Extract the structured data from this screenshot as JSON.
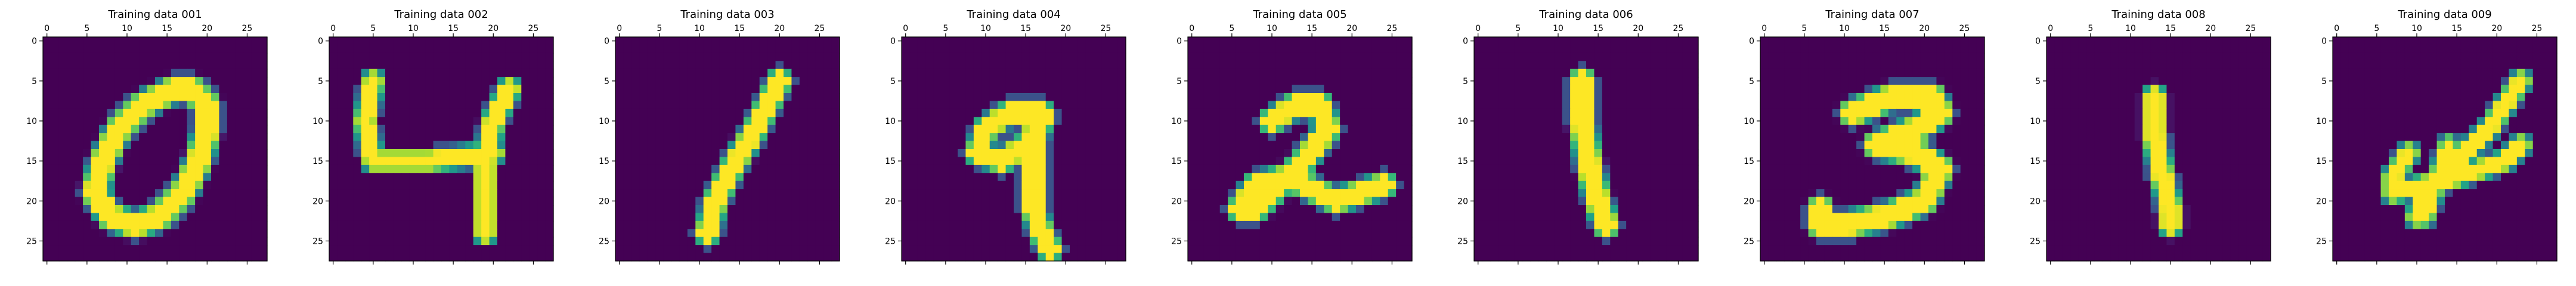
{
  "chart_data": {
    "type": "heatmap",
    "colormap": "viridis",
    "xlim": [
      0,
      27
    ],
    "ylim": [
      27,
      0
    ],
    "xticks": [
      0,
      5,
      10,
      15,
      20,
      25
    ],
    "yticks": [
      0,
      5,
      10,
      15,
      20,
      25
    ],
    "grid": false,
    "panels": [
      {
        "title": "Training data 001",
        "strokes": [
          {
            "points": [
              [
                16,
                6
              ],
              [
                12,
                8
              ],
              [
                9,
                11
              ],
              [
                7,
                15
              ],
              [
                6,
                19
              ],
              [
                8,
                22
              ],
              [
                11,
                23
              ],
              [
                14,
                22
              ],
              [
                17,
                19
              ],
              [
                19,
                15
              ],
              [
                20,
                11
              ],
              [
                20,
                8
              ],
              [
                18,
                6
              ],
              [
                16,
                6
              ]
            ],
            "width": 2.3
          }
        ]
      },
      {
        "title": "Training data 002",
        "strokes": [
          {
            "points": [
              [
                5,
                5
              ],
              [
                4,
                10
              ],
              [
                5,
                15
              ],
              [
                12,
                15
              ],
              [
                20,
                14
              ]
            ],
            "width": 1.7
          },
          {
            "points": [
              [
                22,
                6
              ],
              [
                20,
                10
              ],
              [
                19,
                15
              ],
              [
                19,
                20
              ],
              [
                19,
                24
              ]
            ],
            "width": 1.8
          }
        ]
      },
      {
        "title": "Training data 003",
        "strokes": [
          {
            "points": [
              [
                20,
                5
              ],
              [
                17,
                11
              ],
              [
                14,
                16
              ],
              [
                12,
                20
              ],
              [
                11,
                24
              ]
            ],
            "width": 2.0
          }
        ]
      },
      {
        "title": "Training data 004",
        "strokes": [
          {
            "points": [
              [
                17,
                9
              ],
              [
                13,
                9
              ],
              [
                10,
                11
              ],
              [
                9,
                14
              ],
              [
                12,
                15
              ],
              [
                15,
                13
              ],
              [
                17,
                10
              ]
            ],
            "width": 2.0
          },
          {
            "points": [
              [
                17,
                9
              ],
              [
                16,
                13
              ],
              [
                16,
                17
              ],
              [
                16,
                21
              ],
              [
                17,
                24
              ],
              [
                18,
                26
              ]
            ],
            "width": 2.0
          }
        ]
      },
      {
        "title": "Training data 005",
        "strokes": [
          {
            "points": [
              [
                10,
                10
              ],
              [
                13,
                8
              ],
              [
                16,
                8
              ],
              [
                17,
                11
              ],
              [
                14,
                15
              ],
              [
                11,
                18
              ],
              [
                8,
                21
              ],
              [
                6,
                21
              ],
              [
                8,
                18
              ],
              [
                12,
                17
              ],
              [
                16,
                19
              ],
              [
                18,
                20
              ],
              [
                21,
                19
              ],
              [
                24,
                18
              ]
            ],
            "width": 2.1
          }
        ]
      },
      {
        "title": "Training data 006",
        "strokes": [
          {
            "points": [
              [
                13,
                5
              ],
              [
                13,
                10
              ],
              [
                14,
                16
              ],
              [
                15,
                20
              ],
              [
                16,
                23
              ]
            ],
            "width": 2.2
          }
        ]
      },
      {
        "title": "Training data 007",
        "strokes": [
          {
            "points": [
              [
                11,
                9
              ],
              [
                16,
                7
              ],
              [
                21,
                7
              ],
              [
                22,
                9
              ],
              [
                19,
                11
              ],
              [
                14,
                13
              ],
              [
                19,
                14
              ],
              [
                22,
                16
              ],
              [
                20,
                20
              ],
              [
                15,
                22
              ],
              [
                10,
                23
              ],
              [
                7,
                23
              ],
              [
                7,
                21
              ]
            ],
            "width": 2.3
          }
        ]
      },
      {
        "title": "Training data 008",
        "strokes": [
          {
            "points": [
              [
                13,
                7
              ],
              [
                13,
                12
              ],
              [
                14,
                17
              ],
              [
                15,
                21
              ],
              [
                15,
                23
              ]
            ],
            "width": 1.9
          }
        ]
      },
      {
        "title": "Training data 009",
        "strokes": [
          {
            "points": [
              [
                23,
                5
              ],
              [
                19,
                11
              ],
              [
                14,
                16
              ],
              [
                11,
                19
              ],
              [
                10,
                22
              ]
            ],
            "width": 1.6
          },
          {
            "points": [
              [
                9,
                14
              ],
              [
                7,
                17
              ],
              [
                7,
                19
              ],
              [
                11,
                18
              ],
              [
                15,
                17
              ],
              [
                18,
                16
              ],
              [
                21,
                15
              ],
              [
                23,
                13
              ]
            ],
            "width": 1.6
          },
          {
            "points": [
              [
                14,
                13
              ],
              [
                13,
                16
              ],
              [
                12,
                19
              ],
              [
                11,
                22
              ]
            ],
            "width": 1.4
          }
        ]
      }
    ]
  }
}
